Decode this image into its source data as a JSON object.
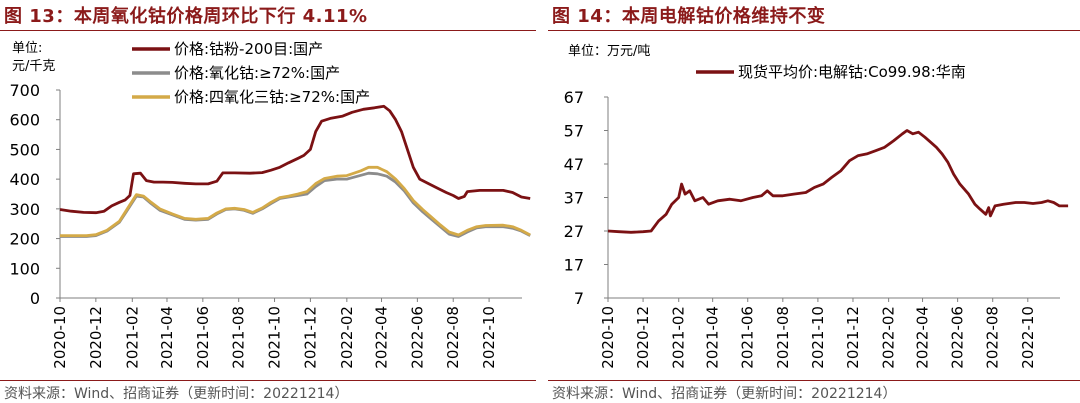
{
  "left": {
    "title": "图 13：本周氧化钴价格周环比下行 4.11%",
    "unit_line1": "单位:",
    "unit_line2": "元/千克",
    "source": "资料来源：Wind、招商证券（更新时间：20221214）"
  },
  "right": {
    "title": "图 14：本周电解钴价格维持不变",
    "unit": "单位：万元/吨",
    "source": "资料来源：Wind、招商证券（更新时间：20221214）"
  },
  "colors": {
    "brand": "#8B1A1A",
    "series_dark": "#7B1113",
    "series_gray": "#8C8C8C",
    "series_gold": "#D4AA48"
  },
  "chart_data": [
    {
      "type": "line",
      "ylim": [
        0,
        700
      ],
      "yticks": [
        0,
        100,
        200,
        300,
        400,
        500,
        600,
        700
      ],
      "xlim": [
        "2020-10",
        "2022-12"
      ],
      "xticks": [
        "2020-10",
        "2020-12",
        "2021-02",
        "2021-04",
        "2021-06",
        "2021-08",
        "2021-10",
        "2021-12",
        "2022-02",
        "2022-04",
        "2022-06",
        "2022-08",
        "2022-10"
      ],
      "legend_position": "top-center",
      "series": [
        {
          "name": "价格:钴粉-200目:国产",
          "color": "#7B1113",
          "points": [
            [
              "2020-10-01",
              298
            ],
            [
              "2020-10-20",
              292
            ],
            [
              "2020-11-10",
              288
            ],
            [
              "2020-12-01",
              287
            ],
            [
              "2020-12-15",
              292
            ],
            [
              "2020-12-28",
              310
            ],
            [
              "2021-01-10",
              322
            ],
            [
              "2021-01-20",
              330
            ],
            [
              "2021-01-28",
              345
            ],
            [
              "2021-02-03",
              418
            ],
            [
              "2021-02-15",
              420
            ],
            [
              "2021-02-25",
              395
            ],
            [
              "2021-03-10",
              390
            ],
            [
              "2021-03-25",
              390
            ],
            [
              "2021-04-10",
              389
            ],
            [
              "2021-05-01",
              386
            ],
            [
              "2021-05-20",
              384
            ],
            [
              "2021-06-10",
              384
            ],
            [
              "2021-06-25",
              393
            ],
            [
              "2021-07-05",
              421
            ],
            [
              "2021-07-25",
              421
            ],
            [
              "2021-08-20",
              420
            ],
            [
              "2021-09-10",
              422
            ],
            [
              "2021-09-25",
              430
            ],
            [
              "2021-10-10",
              440
            ],
            [
              "2021-10-25",
              455
            ],
            [
              "2021-11-10",
              470
            ],
            [
              "2021-11-20",
              480
            ],
            [
              "2021-12-01",
              500
            ],
            [
              "2021-12-10",
              560
            ],
            [
              "2021-12-20",
              595
            ],
            [
              "2022-01-05",
              605
            ],
            [
              "2022-01-25",
              612
            ],
            [
              "2022-02-10",
              625
            ],
            [
              "2022-03-01",
              635
            ],
            [
              "2022-03-20",
              640
            ],
            [
              "2022-04-05",
              645
            ],
            [
              "2022-04-15",
              630
            ],
            [
              "2022-04-25",
              600
            ],
            [
              "2022-05-05",
              560
            ],
            [
              "2022-05-15",
              500
            ],
            [
              "2022-05-25",
              440
            ],
            [
              "2022-06-05",
              400
            ],
            [
              "2022-06-20",
              385
            ],
            [
              "2022-07-05",
              370
            ],
            [
              "2022-07-20",
              355
            ],
            [
              "2022-08-01",
              345
            ],
            [
              "2022-08-10",
              335
            ],
            [
              "2022-08-20",
              342
            ],
            [
              "2022-08-25",
              358
            ],
            [
              "2022-09-15",
              362
            ],
            [
              "2022-10-10",
              362
            ],
            [
              "2022-10-25",
              362
            ],
            [
              "2022-11-10",
              355
            ],
            [
              "2022-11-25",
              340
            ],
            [
              "2022-12-10",
              335
            ]
          ]
        },
        {
          "name": "价格:氧化钴:≥72%:国产",
          "color": "#8C8C8C",
          "points": [
            [
              "2020-10-01",
              207
            ],
            [
              "2020-10-25",
              207
            ],
            [
              "2020-11-15",
              207
            ],
            [
              "2020-12-01",
              210
            ],
            [
              "2020-12-20",
              225
            ],
            [
              "2021-01-10",
              255
            ],
            [
              "2021-01-25",
              300
            ],
            [
              "2021-02-08",
              343
            ],
            [
              "2021-02-20",
              340
            ],
            [
              "2021-03-05",
              318
            ],
            [
              "2021-03-20",
              295
            ],
            [
              "2021-04-10",
              280
            ],
            [
              "2021-05-01",
              265
            ],
            [
              "2021-05-20",
              262
            ],
            [
              "2021-06-10",
              265
            ],
            [
              "2021-06-25",
              283
            ],
            [
              "2021-07-10",
              298
            ],
            [
              "2021-07-25",
              300
            ],
            [
              "2021-08-10",
              295
            ],
            [
              "2021-08-25",
              285
            ],
            [
              "2021-09-10",
              300
            ],
            [
              "2021-09-25",
              318
            ],
            [
              "2021-10-10",
              335
            ],
            [
              "2021-10-25",
              340
            ],
            [
              "2021-11-10",
              345
            ],
            [
              "2021-11-25",
              350
            ],
            [
              "2021-12-10",
              375
            ],
            [
              "2021-12-25",
              395
            ],
            [
              "2022-01-15",
              400
            ],
            [
              "2022-02-01",
              400
            ],
            [
              "2022-02-10",
              405
            ],
            [
              "2022-02-25",
              413
            ],
            [
              "2022-03-10",
              420
            ],
            [
              "2022-03-25",
              418
            ],
            [
              "2022-04-10",
              410
            ],
            [
              "2022-04-25",
              390
            ],
            [
              "2022-05-10",
              360
            ],
            [
              "2022-05-25",
              320
            ],
            [
              "2022-06-10",
              290
            ],
            [
              "2022-06-25",
              265
            ],
            [
              "2022-07-10",
              240
            ],
            [
              "2022-07-25",
              215
            ],
            [
              "2022-08-10",
              207
            ],
            [
              "2022-08-25",
              222
            ],
            [
              "2022-09-10",
              236
            ],
            [
              "2022-09-25",
              240
            ],
            [
              "2022-10-25",
              240
            ],
            [
              "2022-11-10",
              235
            ],
            [
              "2022-11-25",
              225
            ],
            [
              "2022-12-10",
              210
            ]
          ]
        },
        {
          "name": "价格:四氧化三钴:≥72%:国产",
          "color": "#D4AA48",
          "points": [
            [
              "2020-10-01",
              210
            ],
            [
              "2020-10-25",
              210
            ],
            [
              "2020-11-15",
              210
            ],
            [
              "2020-12-01",
              213
            ],
            [
              "2020-12-20",
              228
            ],
            [
              "2021-01-10",
              258
            ],
            [
              "2021-01-25",
              305
            ],
            [
              "2021-02-08",
              348
            ],
            [
              "2021-02-20",
              343
            ],
            [
              "2021-03-05",
              322
            ],
            [
              "2021-03-20",
              300
            ],
            [
              "2021-04-10",
              283
            ],
            [
              "2021-05-01",
              268
            ],
            [
              "2021-05-20",
              265
            ],
            [
              "2021-06-10",
              268
            ],
            [
              "2021-06-25",
              286
            ],
            [
              "2021-07-10",
              300
            ],
            [
              "2021-07-25",
              302
            ],
            [
              "2021-08-10",
              298
            ],
            [
              "2021-08-25",
              288
            ],
            [
              "2021-09-10",
              303
            ],
            [
              "2021-09-25",
              322
            ],
            [
              "2021-10-10",
              338
            ],
            [
              "2021-10-25",
              343
            ],
            [
              "2021-11-10",
              350
            ],
            [
              "2021-11-25",
              358
            ],
            [
              "2021-12-10",
              385
            ],
            [
              "2021-12-25",
              402
            ],
            [
              "2022-01-15",
              410
            ],
            [
              "2022-02-01",
              412
            ],
            [
              "2022-02-10",
              418
            ],
            [
              "2022-02-25",
              428
            ],
            [
              "2022-03-10",
              440
            ],
            [
              "2022-03-25",
              440
            ],
            [
              "2022-04-10",
              425
            ],
            [
              "2022-04-25",
              400
            ],
            [
              "2022-05-10",
              368
            ],
            [
              "2022-05-25",
              328
            ],
            [
              "2022-06-10",
              298
            ],
            [
              "2022-06-25",
              272
            ],
            [
              "2022-07-10",
              246
            ],
            [
              "2022-07-25",
              222
            ],
            [
              "2022-08-10",
              212
            ],
            [
              "2022-08-25",
              228
            ],
            [
              "2022-09-10",
              240
            ],
            [
              "2022-09-25",
              244
            ],
            [
              "2022-10-25",
              245
            ],
            [
              "2022-11-10",
              240
            ],
            [
              "2022-11-25",
              228
            ],
            [
              "2022-12-10",
              212
            ]
          ]
        }
      ]
    },
    {
      "type": "line",
      "ylim": [
        7,
        67
      ],
      "yticks": [
        7,
        17,
        27,
        37,
        47,
        57,
        67
      ],
      "xlim": [
        "2020-10",
        "2022-12"
      ],
      "xticks": [
        "2020-10",
        "2020-12",
        "2021-02",
        "2021-04",
        "2021-06",
        "2021-08",
        "2021-10",
        "2021-12",
        "2022-02",
        "2022-04",
        "2022-06",
        "2022-08",
        "2022-10"
      ],
      "legend_position": "top-center",
      "series": [
        {
          "name": "现货平均价:电解钴:Co99.98:华南",
          "color": "#7B1113",
          "points": [
            [
              "2020-10-01",
              27
            ],
            [
              "2020-10-20",
              26.8
            ],
            [
              "2020-11-10",
              26.6
            ],
            [
              "2020-12-01",
              26.8
            ],
            [
              "2020-12-15",
              27
            ],
            [
              "2020-12-28",
              30
            ],
            [
              "2021-01-10",
              32
            ],
            [
              "2021-01-20",
              35
            ],
            [
              "2021-02-01",
              37
            ],
            [
              "2021-02-06",
              41
            ],
            [
              "2021-02-12",
              38
            ],
            [
              "2021-02-20",
              39
            ],
            [
              "2021-03-01",
              36
            ],
            [
              "2021-03-15",
              37
            ],
            [
              "2021-03-25",
              35
            ],
            [
              "2021-04-10",
              36
            ],
            [
              "2021-05-01",
              36.5
            ],
            [
              "2021-05-20",
              36
            ],
            [
              "2021-06-10",
              37
            ],
            [
              "2021-06-25",
              37.5
            ],
            [
              "2021-07-05",
              39
            ],
            [
              "2021-07-15",
              37.5
            ],
            [
              "2021-08-01",
              37.5
            ],
            [
              "2021-08-20",
              38
            ],
            [
              "2021-09-10",
              38.5
            ],
            [
              "2021-09-25",
              40
            ],
            [
              "2021-10-10",
              41
            ],
            [
              "2021-10-25",
              43
            ],
            [
              "2021-11-10",
              45
            ],
            [
              "2021-11-25",
              48
            ],
            [
              "2021-12-10",
              49.5
            ],
            [
              "2021-12-25",
              50
            ],
            [
              "2022-01-10",
              51
            ],
            [
              "2022-01-25",
              52
            ],
            [
              "2022-02-10",
              54
            ],
            [
              "2022-02-25",
              56
            ],
            [
              "2022-03-05",
              57
            ],
            [
              "2022-03-15",
              56
            ],
            [
              "2022-03-25",
              56.5
            ],
            [
              "2022-04-05",
              55
            ],
            [
              "2022-04-15",
              53.5
            ],
            [
              "2022-04-25",
              52
            ],
            [
              "2022-05-05",
              50
            ],
            [
              "2022-05-15",
              47.5
            ],
            [
              "2022-05-25",
              44
            ],
            [
              "2022-06-05",
              41
            ],
            [
              "2022-06-20",
              38
            ],
            [
              "2022-07-01",
              35
            ],
            [
              "2022-07-10",
              33.5
            ],
            [
              "2022-07-20",
              32
            ],
            [
              "2022-07-25",
              34
            ],
            [
              "2022-07-28",
              31.5
            ],
            [
              "2022-08-05",
              34.5
            ],
            [
              "2022-08-20",
              35
            ],
            [
              "2022-09-10",
              35.5
            ],
            [
              "2022-09-25",
              35.5
            ],
            [
              "2022-10-10",
              35.2
            ],
            [
              "2022-10-25",
              35.5
            ],
            [
              "2022-11-05",
              36
            ],
            [
              "2022-11-15",
              35.5
            ],
            [
              "2022-11-25",
              34.5
            ],
            [
              "2022-12-10",
              34.5
            ]
          ]
        }
      ]
    }
  ]
}
